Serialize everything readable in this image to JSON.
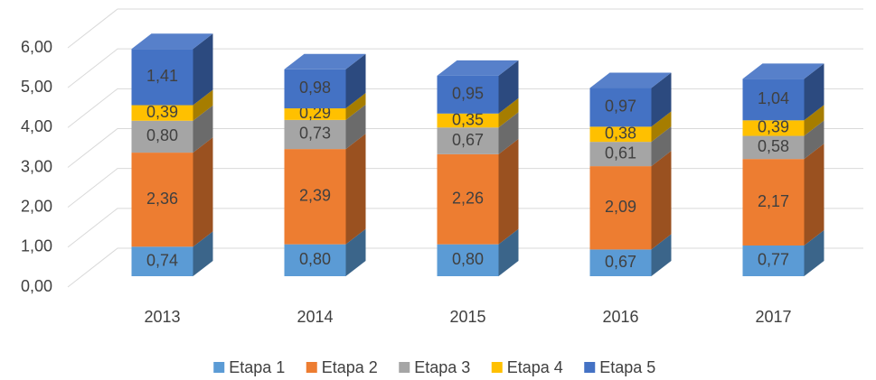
{
  "chart_data": {
    "type": "bar3d_stacked",
    "categories": [
      "2013",
      "2014",
      "2015",
      "2016",
      "2017"
    ],
    "series": [
      {
        "name": "Etapa 1",
        "color": "#5b9bd5",
        "values": [
          0.74,
          0.8,
          0.8,
          0.67,
          0.77
        ],
        "value_labels": [
          "0,74",
          "0,80",
          "0,80",
          "0,67",
          "0,77"
        ]
      },
      {
        "name": "Etapa 2",
        "color": "#ed7d31",
        "values": [
          2.36,
          2.39,
          2.26,
          2.09,
          2.17
        ],
        "value_labels": [
          "2,36",
          "2,39",
          "2,26",
          "2,09",
          "2,17"
        ]
      },
      {
        "name": "Etapa 3",
        "color": "#a5a5a5",
        "values": [
          0.8,
          0.73,
          0.67,
          0.61,
          0.58
        ],
        "value_labels": [
          "0,80",
          "0,73",
          "0,67",
          "0,61",
          "0,58"
        ]
      },
      {
        "name": "Etapa 4",
        "color": "#ffc000",
        "values": [
          0.39,
          0.29,
          0.35,
          0.38,
          0.39
        ],
        "value_labels": [
          "0,39",
          "0,29",
          "0,35",
          "0,38",
          "0,39"
        ]
      },
      {
        "name": "Etapa 5",
        "color": "#4472c4",
        "values": [
          1.41,
          0.98,
          0.95,
          0.97,
          1.04
        ],
        "value_labels": [
          "1,41",
          "0,98",
          "0,95",
          "0,97",
          "1,04"
        ]
      }
    ],
    "ylim": [
      0,
      6
    ],
    "yticks": [
      {
        "value": 0,
        "label": "0,00"
      },
      {
        "value": 1,
        "label": "1,00"
      },
      {
        "value": 2,
        "label": "2,00"
      },
      {
        "value": 3,
        "label": "3,00"
      },
      {
        "value": 4,
        "label": "4,00"
      },
      {
        "value": 5,
        "label": "5,00"
      },
      {
        "value": 6,
        "label": "6,00"
      }
    ],
    "grid": true,
    "legend": "bottom"
  }
}
